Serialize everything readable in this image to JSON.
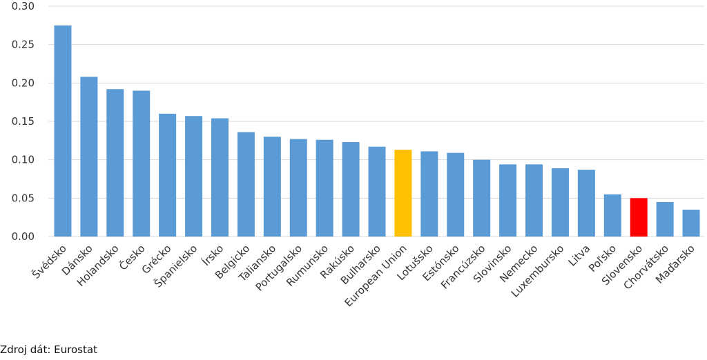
{
  "chart_data": {
    "type": "bar",
    "categories": [
      "Švédsko",
      "Dánsko",
      "Holandsko",
      "Česko",
      "Grécko",
      "Španielsko",
      "Írsko",
      "Belgicko",
      "Taliansko",
      "Portugalsko",
      "Rumunsko",
      "Rakúsko",
      "Bulharsko",
      "European Union",
      "Lotušsko",
      "Estónsko",
      "Francúzsko",
      "Slovinsko",
      "Nemecko",
      "Luxembursko",
      "Litva",
      "Poľsko",
      "Slovensko",
      "Chorvátsko",
      "Maďarsko"
    ],
    "values": [
      0.275,
      0.208,
      0.192,
      0.19,
      0.16,
      0.157,
      0.154,
      0.136,
      0.13,
      0.127,
      0.126,
      0.123,
      0.117,
      0.113,
      0.111,
      0.109,
      0.1,
      0.094,
      0.094,
      0.089,
      0.087,
      0.055,
      0.05,
      0.045,
      0.035
    ],
    "bar_colors": [
      "#5b9bd5",
      "#5b9bd5",
      "#5b9bd5",
      "#5b9bd5",
      "#5b9bd5",
      "#5b9bd5",
      "#5b9bd5",
      "#5b9bd5",
      "#5b9bd5",
      "#5b9bd5",
      "#5b9bd5",
      "#5b9bd5",
      "#5b9bd5",
      "#ffc000",
      "#5b9bd5",
      "#5b9bd5",
      "#5b9bd5",
      "#5b9bd5",
      "#5b9bd5",
      "#5b9bd5",
      "#5b9bd5",
      "#5b9bd5",
      "#ff0000",
      "#5b9bd5",
      "#5b9bd5"
    ],
    "yticks": [
      "0.00",
      "0.05",
      "0.10",
      "0.15",
      "0.20",
      "0.25",
      "0.30"
    ],
    "ylim": [
      0,
      0.3
    ],
    "grid": true,
    "title": "",
    "xlabel": "",
    "ylabel": ""
  },
  "source_text": "Zdroj dát: Eurostat"
}
